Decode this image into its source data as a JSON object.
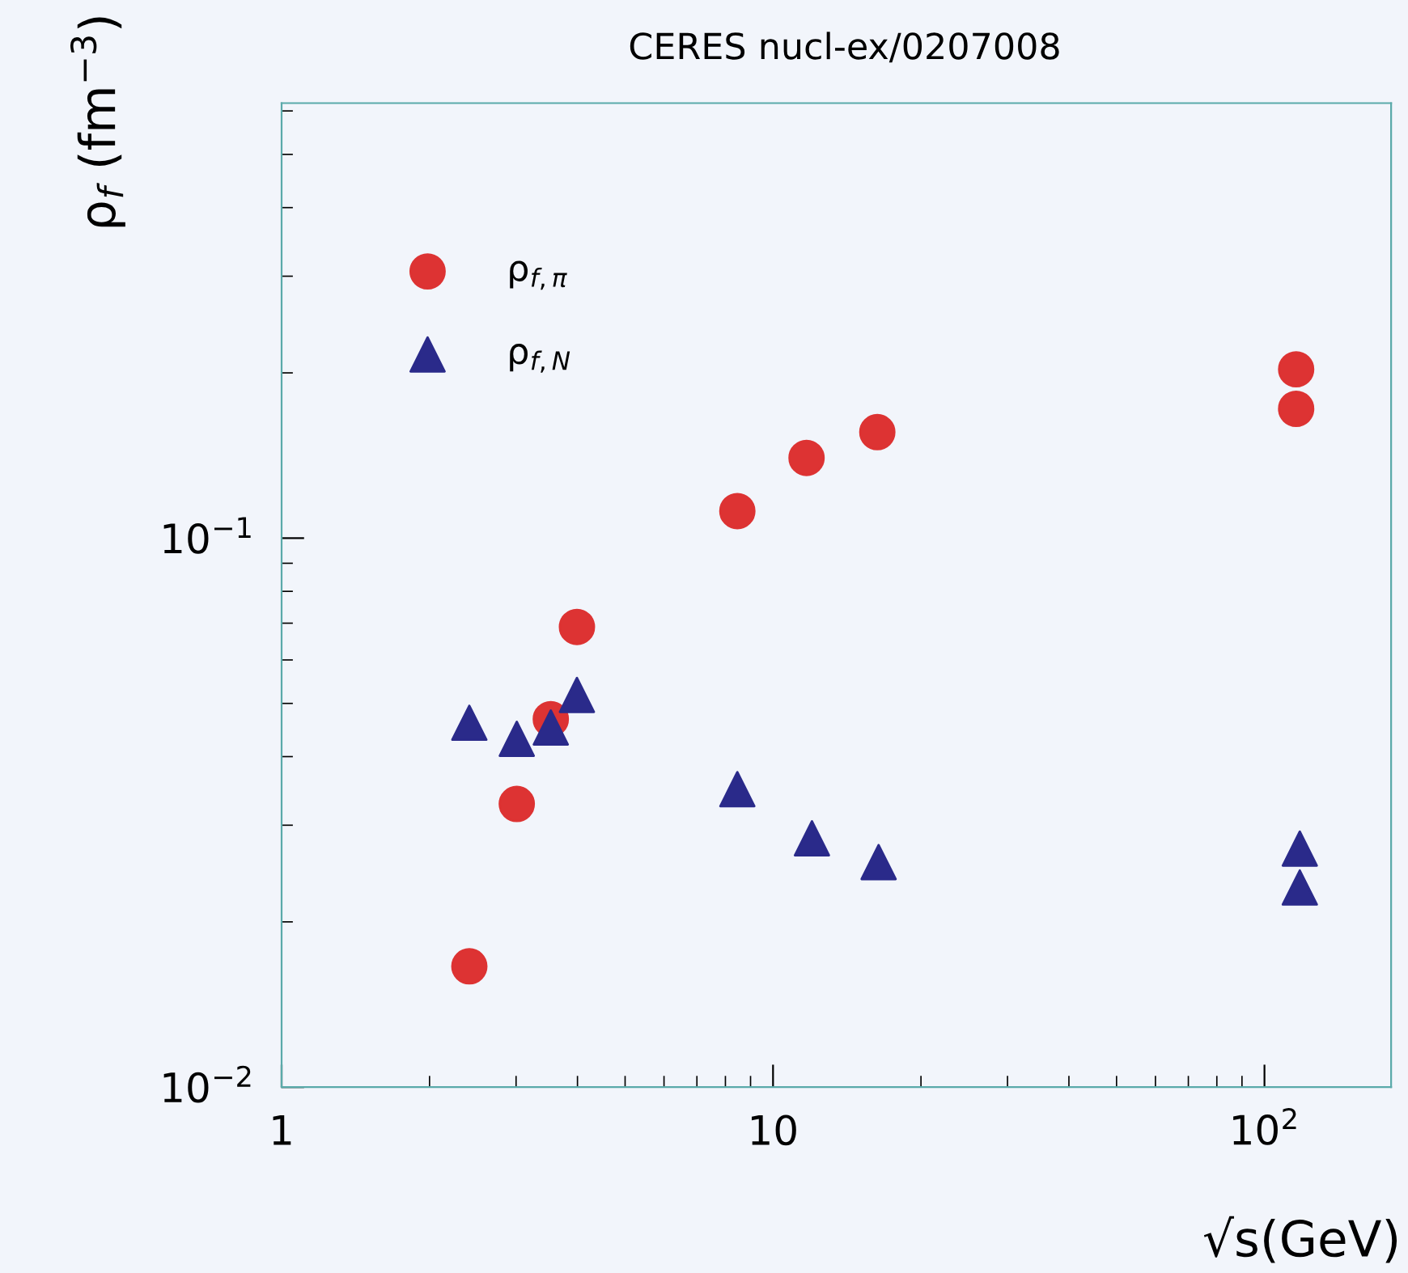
{
  "chart_data": {
    "type": "scatter",
    "title": "CERES nucl-ex/0207008",
    "xlabel": "√s(GeV)",
    "ylabel": "ρ$_{f}$ (fm$^{−3}$)",
    "log": "xy",
    "xlim": [
      1,
      181
    ],
    "ylim": [
      0.01,
      0.62
    ],
    "xticks": [
      1,
      10,
      {
        "value": 100,
        "label": "10$^{2}$"
      }
    ],
    "yticks": [
      {
        "value": 0.01,
        "label": "10$^{−2}$"
      },
      {
        "value": 0.1,
        "label": "10$^{−1}$"
      }
    ],
    "legend": "top left",
    "grid": false,
    "series": [
      {
        "name": "ρ$_{f,π}$",
        "color": "#dd3333",
        "marker": "circle",
        "x": [
          2.41,
          3.01,
          3.53,
          3.99,
          8.46,
          11.7,
          16.3,
          116,
          116
        ],
        "values": [
          0.0166,
          0.0328,
          0.0468,
          0.0689,
          0.112,
          0.14,
          0.156,
          0.203,
          0.172
        ]
      },
      {
        "name": "ρ$_{f,N}$",
        "color": "#2a2a8a",
        "marker": "triangle",
        "x": [
          2.41,
          3.01,
          3.53,
          3.99,
          8.46,
          12.0,
          16.4,
          118,
          118
        ],
        "values": [
          0.0461,
          0.0431,
          0.0452,
          0.0518,
          0.0349,
          0.0284,
          0.0257,
          0.0272,
          0.0231
        ]
      }
    ]
  }
}
